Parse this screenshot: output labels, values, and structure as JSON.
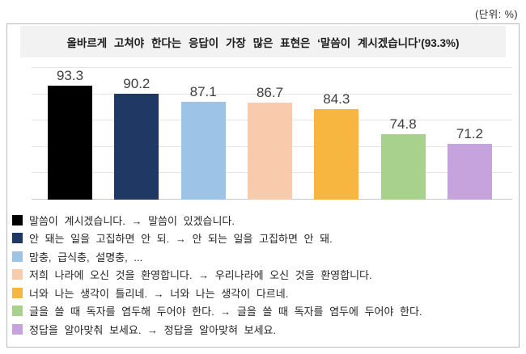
{
  "unit_label": "(단위: %)",
  "header": {
    "title": "올바르게 고쳐야 한다는 응답이 가장 많은 표현은 ‘말씀이 계시겠습니다’(93.3%)"
  },
  "chart_data": {
    "type": "bar",
    "title": "올바르게 고쳐야 한다는 응답이 가장 많은 표현은 ‘말씀이 계시겠습니다’(93.3%)",
    "unit": "(단위: %)",
    "categories": [
      "말씀이 계시겠습니다. → 말씀이 있겠습니다.",
      "안 돼는 일을 고집하면 안 되. → 안 되는 일을 고집하면 안 돼.",
      "맘충, 급식충, 설명충, ...",
      "저희 나라에 오신 것을 환영합니다. → 우리나라에 오신 것을 환영합니다.",
      "너와 나는 생각이 틀리네. → 너와 나는 생각이 다르네.",
      "글을 쓸 때 독자를 염두해 두어야 한다. → 글을 쓸 때 독자를 염두에 두어야 한다.",
      "정답을 알아맞춰 보세요. → 정답을 알아맞혀 보세요."
    ],
    "values": [
      93.3,
      90.2,
      87.1,
      86.7,
      84.3,
      74.8,
      71.2
    ],
    "labels": [
      "93.3",
      "90.2",
      "87.1",
      "86.7",
      "84.3",
      "74.8",
      "71.2"
    ],
    "colors": [
      "#000000",
      "#1F3864",
      "#9DC3E6",
      "#F8CBAD",
      "#F7B63F",
      "#A9D18E",
      "#C7A3DE"
    ],
    "xlabel": "",
    "ylabel": "",
    "ylim": [
      50,
      100
    ],
    "gridline_step": 10,
    "grid": true,
    "legend_position": "bottom"
  }
}
